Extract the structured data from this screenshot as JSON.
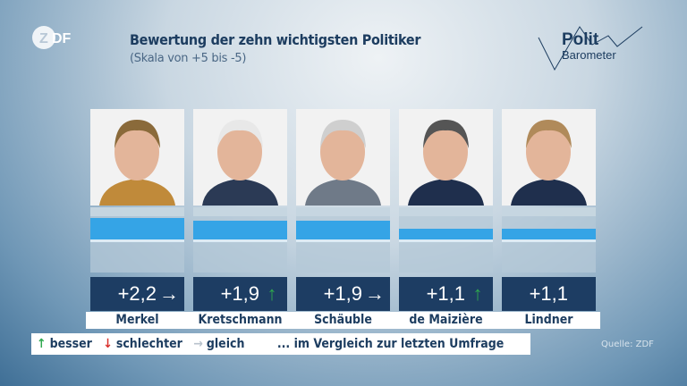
{
  "header": {
    "logo": "ZDF",
    "title": "Bewertung der zehn wichtigsten Politiker",
    "subtitle": "(Skala von +5 bis -5)",
    "brand_line1": "Polit",
    "brand_line2": "Barometer"
  },
  "chart_data": {
    "type": "bar",
    "title": "Bewertung der zehn wichtigsten Politiker",
    "subtitle": "(Skala von +5 bis -5)",
    "ylim": [
      -5,
      5
    ],
    "categories": [
      "Merkel",
      "Kretschmann",
      "Schäuble",
      "de Maizière",
      "Lindner"
    ],
    "values": [
      2.2,
      1.9,
      1.9,
      1.1,
      1.1
    ],
    "value_labels": [
      "+2,2",
      "+1,9",
      "+1,9",
      "+1,1",
      "+1,1"
    ],
    "trends": [
      "same",
      "up",
      "same",
      "up",
      "none"
    ],
    "bar_color": "#35a4e6"
  },
  "trend_icons": {
    "up": "↑",
    "down": "↓",
    "same": "→",
    "none": ""
  },
  "trend_colors": {
    "up": "#2fa84f",
    "down": "#d9302c",
    "same": "#ffffff",
    "none": "#ffffff"
  },
  "legend": {
    "up_icon": "↑",
    "up": "besser",
    "down_icon": "↓",
    "down": "schlechter",
    "same_icon": "→",
    "same": "gleich",
    "note": "... im Vergleich zur letzten Umfrage"
  },
  "source": "Quelle: ZDF"
}
